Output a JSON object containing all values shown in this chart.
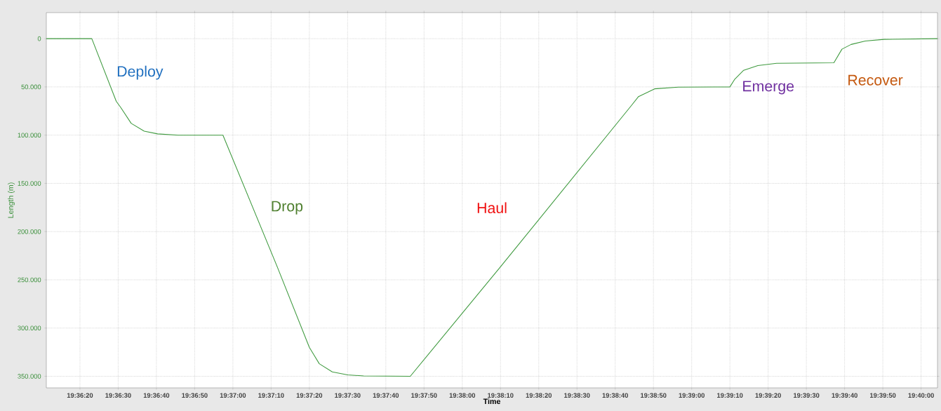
{
  "chart_data": {
    "type": "line",
    "xlabel": "Time",
    "ylabel": "Length (m)",
    "x": [
      19.603111,
      19.606417,
      19.608194,
      19.608528,
      19.609278,
      19.610222,
      19.611194,
      19.612694,
      19.615944,
      19.619889,
      19.622222,
      19.622944,
      19.623889,
      19.625,
      19.626167,
      19.629556,
      19.636111,
      19.645639,
      19.646139,
      19.647306,
      19.649028,
      19.652778,
      19.653111,
      19.653778,
      19.654806,
      19.656167,
      19.660333,
      19.660917,
      19.661583,
      19.662611,
      19.663972,
      19.667861
    ],
    "series": [
      {
        "color": "#3f9a3f",
        "values": [
          0,
          0,
          65000,
          71500,
          87800,
          95900,
          98700,
          100000,
          100000,
          236500,
          320000,
          337000,
          345400,
          348600,
          349600,
          350000,
          236500,
          69000,
          60000,
          52000,
          50200,
          50000,
          42400,
          32800,
          27900,
          25500,
          25000,
          10900,
          6000,
          2400,
          700,
          0
        ]
      }
    ],
    "xlim": [
      19.603111,
      19.667861
    ],
    "ylim": [
      362000,
      -27000
    ],
    "xticks": [
      {
        "value": 19.605556,
        "label": "19:36:20"
      },
      {
        "value": 19.608333,
        "label": "19:36:30"
      },
      {
        "value": 19.611111,
        "label": "19:36:40"
      },
      {
        "value": 19.613889,
        "label": "19:36:50"
      },
      {
        "value": 19.616667,
        "label": "19:37:00"
      },
      {
        "value": 19.619444,
        "label": "19:37:10"
      },
      {
        "value": 19.622222,
        "label": "19:37:20"
      },
      {
        "value": 19.625,
        "label": "19:37:30"
      },
      {
        "value": 19.627778,
        "label": "19:37:40"
      },
      {
        "value": 19.630556,
        "label": "19:37:50"
      },
      {
        "value": 19.633333,
        "label": "19:38:00"
      },
      {
        "value": 19.636111,
        "label": "19:38:10"
      },
      {
        "value": 19.638889,
        "label": "19:38:20"
      },
      {
        "value": 19.641667,
        "label": "19:38:30"
      },
      {
        "value": 19.644444,
        "label": "19:38:40"
      },
      {
        "value": 19.647222,
        "label": "19:38:50"
      },
      {
        "value": 19.65,
        "label": "19:39:00"
      },
      {
        "value": 19.652778,
        "label": "19:39:10"
      },
      {
        "value": 19.655556,
        "label": "19:39:20"
      },
      {
        "value": 19.658333,
        "label": "19:39:30"
      },
      {
        "value": 19.661111,
        "label": "19:39:40"
      },
      {
        "value": 19.663889,
        "label": "19:39:50"
      },
      {
        "value": 19.666667,
        "label": "19:40:00"
      }
    ],
    "yticks": [
      0,
      {
        "value": 50000,
        "label": "50.000"
      },
      {
        "value": 100000,
        "label": "100.000"
      },
      {
        "value": 150000,
        "label": "150.000"
      },
      {
        "value": 200000,
        "label": "200.000"
      },
      {
        "value": 250000,
        "label": "250.000"
      },
      {
        "value": 300000,
        "label": "300.000"
      },
      {
        "value": 350000,
        "label": "350.000"
      }
    ],
    "grid": true,
    "marker": "none",
    "line_style": "solid",
    "annotations": [
      "Deploy",
      "Drop",
      "Haul",
      "Emerge",
      "Recover"
    ]
  }
}
